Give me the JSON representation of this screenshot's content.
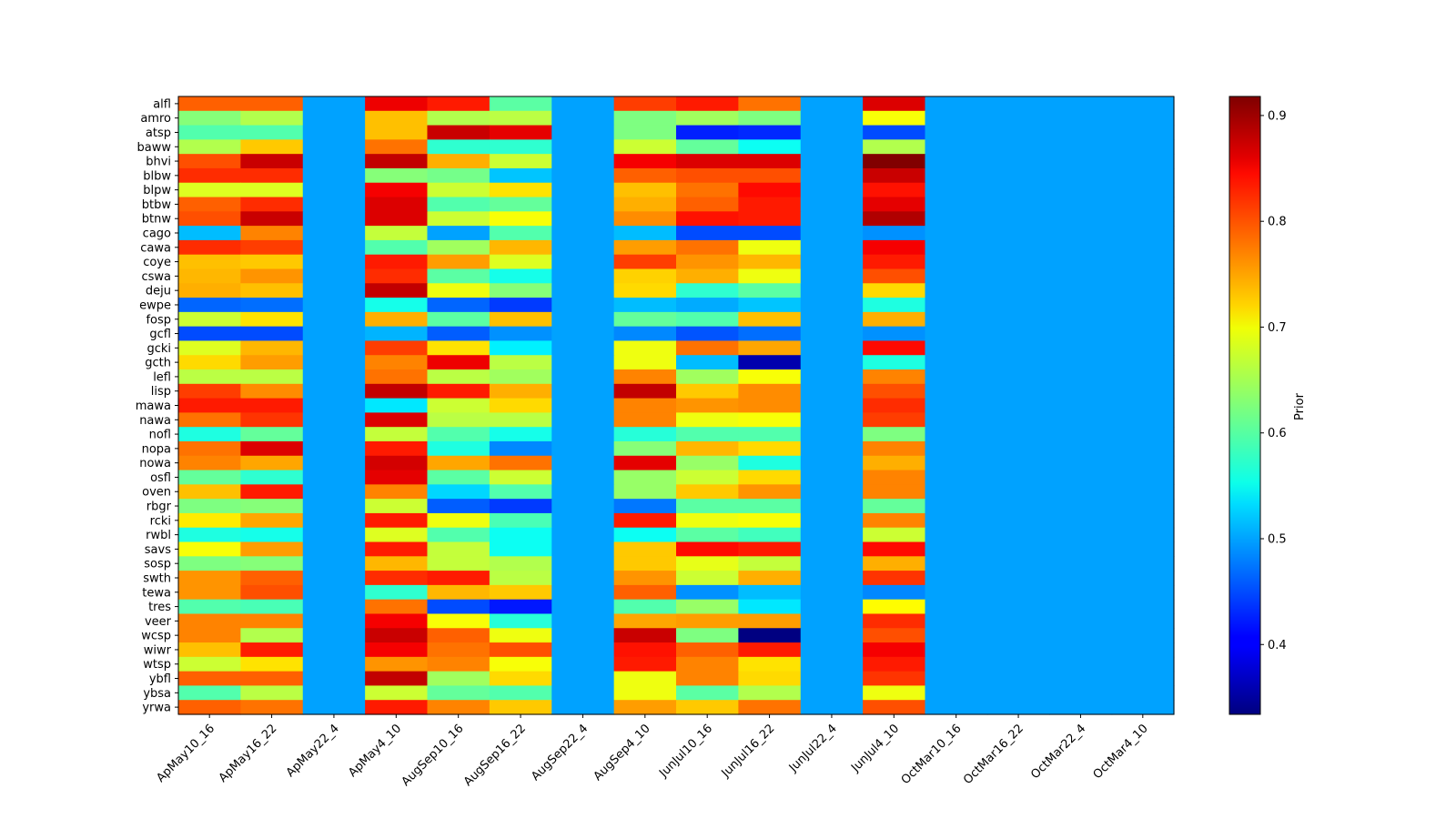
{
  "chart_data": {
    "type": "heatmap",
    "title": "",
    "xlabel": "",
    "ylabel": "",
    "colormap": "jet",
    "colorbar": {
      "label": "Prior",
      "vmin": 0.334,
      "vmax": 0.918,
      "ticks": [
        0.4,
        0.5,
        0.6,
        0.7,
        0.8,
        0.9
      ],
      "tick_labels": [
        "0.4",
        "0.5",
        "0.6",
        "0.7",
        "0.8",
        "0.9"
      ]
    },
    "x_categories": [
      "ApMay10_16",
      "ApMay16_22",
      "ApMay22_4",
      "ApMay4_10",
      "AugSep10_16",
      "AugSep16_22",
      "AugSep22_4",
      "AugSep4_10",
      "JunJul10_16",
      "JunJul16_22",
      "JunJul22_4",
      "JunJul4_10",
      "OctMar10_16",
      "OctMar16_22",
      "OctMar22_4",
      "OctMar4_10"
    ],
    "y_categories": [
      "alfl",
      "amro",
      "atsp",
      "baww",
      "bhvi",
      "blbw",
      "blpw",
      "btbw",
      "btnw",
      "cago",
      "cawa",
      "coye",
      "cswa",
      "deju",
      "ewpe",
      "fosp",
      "gcfl",
      "gcki",
      "gcth",
      "lefl",
      "lisp",
      "mawa",
      "nawa",
      "nofl",
      "nopa",
      "nowa",
      "osfl",
      "oven",
      "rbgr",
      "rcki",
      "rwbl",
      "savs",
      "sosp",
      "swth",
      "tewa",
      "tres",
      "veer",
      "wcsp",
      "wiwr",
      "wtsp",
      "ybfl",
      "ybsa",
      "yrwa"
    ],
    "values": [
      [
        0.79,
        0.79,
        0.5,
        0.855,
        0.83,
        0.605,
        0.5,
        0.81,
        0.83,
        0.78,
        0.5,
        0.865,
        0.5,
        0.5,
        0.5,
        0.5
      ],
      [
        0.63,
        0.655,
        0.5,
        0.735,
        0.655,
        0.66,
        0.5,
        0.625,
        0.645,
        0.625,
        0.5,
        0.695,
        0.5,
        0.5,
        0.5,
        0.5
      ],
      [
        0.6,
        0.6,
        0.5,
        0.735,
        0.876,
        0.86,
        0.5,
        0.625,
        0.425,
        0.43,
        0.5,
        0.45,
        0.5,
        0.5,
        0.5,
        0.5
      ],
      [
        0.655,
        0.73,
        0.5,
        0.78,
        0.58,
        0.58,
        0.5,
        0.67,
        0.61,
        0.56,
        0.5,
        0.655,
        0.5,
        0.5,
        0.5,
        0.5
      ],
      [
        0.8,
        0.876,
        0.5,
        0.88,
        0.745,
        0.67,
        0.5,
        0.85,
        0.865,
        0.865,
        0.5,
        0.917,
        0.5,
        0.5,
        0.5,
        0.5
      ],
      [
        0.82,
        0.82,
        0.5,
        0.63,
        0.62,
        0.52,
        0.5,
        0.79,
        0.8,
        0.8,
        0.5,
        0.876,
        0.5,
        0.5,
        0.5,
        0.5
      ],
      [
        0.68,
        0.68,
        0.5,
        0.85,
        0.67,
        0.715,
        0.5,
        0.735,
        0.78,
        0.84,
        0.5,
        0.835,
        0.5,
        0.5,
        0.5,
        0.5
      ],
      [
        0.79,
        0.82,
        0.5,
        0.865,
        0.6,
        0.61,
        0.5,
        0.745,
        0.79,
        0.83,
        0.5,
        0.86,
        0.5,
        0.5,
        0.5,
        0.5
      ],
      [
        0.8,
        0.876,
        0.5,
        0.865,
        0.67,
        0.695,
        0.5,
        0.765,
        0.835,
        0.83,
        0.5,
        0.89,
        0.5,
        0.5,
        0.5,
        0.5
      ],
      [
        0.515,
        0.77,
        0.5,
        0.665,
        0.5,
        0.6,
        0.5,
        0.515,
        0.45,
        0.45,
        0.5,
        0.49,
        0.5,
        0.5,
        0.5,
        0.5
      ],
      [
        0.82,
        0.81,
        0.5,
        0.6,
        0.645,
        0.74,
        0.5,
        0.755,
        0.78,
        0.69,
        0.5,
        0.85,
        0.5,
        0.5,
        0.5,
        0.5
      ],
      [
        0.735,
        0.73,
        0.5,
        0.83,
        0.755,
        0.68,
        0.5,
        0.81,
        0.76,
        0.74,
        0.5,
        0.83,
        0.5,
        0.5,
        0.5,
        0.5
      ],
      [
        0.74,
        0.76,
        0.5,
        0.82,
        0.605,
        0.565,
        0.5,
        0.725,
        0.745,
        0.69,
        0.5,
        0.8,
        0.5,
        0.5,
        0.5,
        0.5
      ],
      [
        0.745,
        0.735,
        0.5,
        0.88,
        0.69,
        0.63,
        0.5,
        0.72,
        0.58,
        0.605,
        0.5,
        0.72,
        0.5,
        0.5,
        0.5,
        0.5
      ],
      [
        0.465,
        0.47,
        0.5,
        0.565,
        0.465,
        0.44,
        0.5,
        0.515,
        0.505,
        0.52,
        0.5,
        0.57,
        0.5,
        0.5,
        0.5,
        0.5
      ],
      [
        0.67,
        0.715,
        0.5,
        0.745,
        0.605,
        0.735,
        0.5,
        0.61,
        0.6,
        0.735,
        0.5,
        0.745,
        0.5,
        0.5,
        0.5,
        0.5
      ],
      [
        0.45,
        0.45,
        0.5,
        0.51,
        0.46,
        0.49,
        0.5,
        0.485,
        0.455,
        0.47,
        0.5,
        0.49,
        0.5,
        0.5,
        0.5,
        0.5
      ],
      [
        0.68,
        0.74,
        0.5,
        0.81,
        0.715,
        0.545,
        0.5,
        0.69,
        0.78,
        0.75,
        0.5,
        0.84,
        0.5,
        0.5,
        0.5,
        0.5
      ],
      [
        0.72,
        0.755,
        0.5,
        0.77,
        0.855,
        0.66,
        0.5,
        0.69,
        0.515,
        0.36,
        0.5,
        0.57,
        0.5,
        0.5,
        0.5,
        0.5
      ],
      [
        0.66,
        0.66,
        0.5,
        0.78,
        0.66,
        0.645,
        0.5,
        0.77,
        0.645,
        0.695,
        0.5,
        0.77,
        0.5,
        0.5,
        0.5,
        0.5
      ],
      [
        0.81,
        0.765,
        0.5,
        0.88,
        0.83,
        0.745,
        0.5,
        0.88,
        0.73,
        0.765,
        0.5,
        0.8,
        0.5,
        0.5,
        0.5,
        0.5
      ],
      [
        0.83,
        0.83,
        0.5,
        0.54,
        0.67,
        0.72,
        0.5,
        0.77,
        0.76,
        0.765,
        0.5,
        0.82,
        0.5,
        0.5,
        0.5,
        0.5
      ],
      [
        0.78,
        0.815,
        0.5,
        0.865,
        0.66,
        0.66,
        0.5,
        0.77,
        0.69,
        0.695,
        0.5,
        0.81,
        0.5,
        0.5,
        0.5,
        0.5
      ],
      [
        0.57,
        0.61,
        0.5,
        0.665,
        0.6,
        0.565,
        0.5,
        0.575,
        0.6,
        0.6,
        0.5,
        0.625,
        0.5,
        0.5,
        0.5,
        0.5
      ],
      [
        0.78,
        0.865,
        0.5,
        0.83,
        0.57,
        0.485,
        0.5,
        0.63,
        0.74,
        0.72,
        0.5,
        0.77,
        0.5,
        0.5,
        0.5,
        0.5
      ],
      [
        0.77,
        0.75,
        0.5,
        0.87,
        0.75,
        0.78,
        0.5,
        0.86,
        0.64,
        0.57,
        0.5,
        0.745,
        0.5,
        0.5,
        0.5,
        0.5
      ],
      [
        0.61,
        0.58,
        0.5,
        0.86,
        0.605,
        0.67,
        0.5,
        0.64,
        0.67,
        0.72,
        0.5,
        0.77,
        0.5,
        0.5,
        0.5,
        0.5
      ],
      [
        0.735,
        0.83,
        0.5,
        0.77,
        0.53,
        0.6,
        0.5,
        0.64,
        0.73,
        0.76,
        0.5,
        0.77,
        0.5,
        0.5,
        0.5,
        0.5
      ],
      [
        0.625,
        0.63,
        0.5,
        0.67,
        0.46,
        0.44,
        0.5,
        0.475,
        0.605,
        0.605,
        0.5,
        0.61,
        0.5,
        0.5,
        0.5,
        0.5
      ],
      [
        0.71,
        0.75,
        0.5,
        0.83,
        0.69,
        0.595,
        0.5,
        0.83,
        0.69,
        0.695,
        0.5,
        0.77,
        0.5,
        0.5,
        0.5,
        0.5
      ],
      [
        0.57,
        0.565,
        0.5,
        0.68,
        0.6,
        0.56,
        0.5,
        0.56,
        0.605,
        0.59,
        0.5,
        0.67,
        0.5,
        0.5,
        0.5,
        0.5
      ],
      [
        0.695,
        0.755,
        0.5,
        0.83,
        0.665,
        0.56,
        0.5,
        0.73,
        0.84,
        0.83,
        0.5,
        0.84,
        0.5,
        0.5,
        0.5,
        0.5
      ],
      [
        0.625,
        0.63,
        0.5,
        0.74,
        0.665,
        0.655,
        0.5,
        0.73,
        0.685,
        0.665,
        0.5,
        0.745,
        0.5,
        0.5,
        0.5,
        0.5
      ],
      [
        0.76,
        0.79,
        0.5,
        0.82,
        0.83,
        0.66,
        0.5,
        0.76,
        0.67,
        0.745,
        0.5,
        0.815,
        0.5,
        0.5,
        0.5,
        0.5
      ],
      [
        0.76,
        0.8,
        0.5,
        0.58,
        0.74,
        0.73,
        0.5,
        0.79,
        0.49,
        0.515,
        0.5,
        0.485,
        0.5,
        0.5,
        0.5,
        0.5
      ],
      [
        0.6,
        0.595,
        0.5,
        0.78,
        0.45,
        0.42,
        0.5,
        0.6,
        0.64,
        0.54,
        0.5,
        0.7,
        0.5,
        0.5,
        0.5,
        0.5
      ],
      [
        0.77,
        0.77,
        0.5,
        0.85,
        0.695,
        0.575,
        0.5,
        0.75,
        0.755,
        0.755,
        0.5,
        0.82,
        0.5,
        0.5,
        0.5,
        0.5
      ],
      [
        0.77,
        0.655,
        0.5,
        0.876,
        0.79,
        0.69,
        0.5,
        0.876,
        0.625,
        0.335,
        0.5,
        0.8,
        0.5,
        0.5,
        0.5,
        0.5
      ],
      [
        0.735,
        0.83,
        0.5,
        0.85,
        0.78,
        0.8,
        0.5,
        0.835,
        0.79,
        0.83,
        0.5,
        0.85,
        0.5,
        0.5,
        0.5,
        0.5
      ],
      [
        0.67,
        0.715,
        0.5,
        0.76,
        0.77,
        0.695,
        0.5,
        0.83,
        0.77,
        0.715,
        0.5,
        0.83,
        0.5,
        0.5,
        0.5,
        0.5
      ],
      [
        0.79,
        0.79,
        0.5,
        0.88,
        0.645,
        0.72,
        0.5,
        0.69,
        0.77,
        0.72,
        0.5,
        0.815,
        0.5,
        0.5,
        0.5,
        0.5
      ],
      [
        0.6,
        0.66,
        0.5,
        0.67,
        0.61,
        0.6,
        0.5,
        0.69,
        0.605,
        0.655,
        0.5,
        0.69,
        0.5,
        0.5,
        0.5,
        0.5
      ],
      [
        0.79,
        0.78,
        0.5,
        0.83,
        0.77,
        0.73,
        0.5,
        0.755,
        0.73,
        0.78,
        0.5,
        0.8,
        0.5,
        0.5,
        0.5,
        0.5
      ]
    ]
  }
}
